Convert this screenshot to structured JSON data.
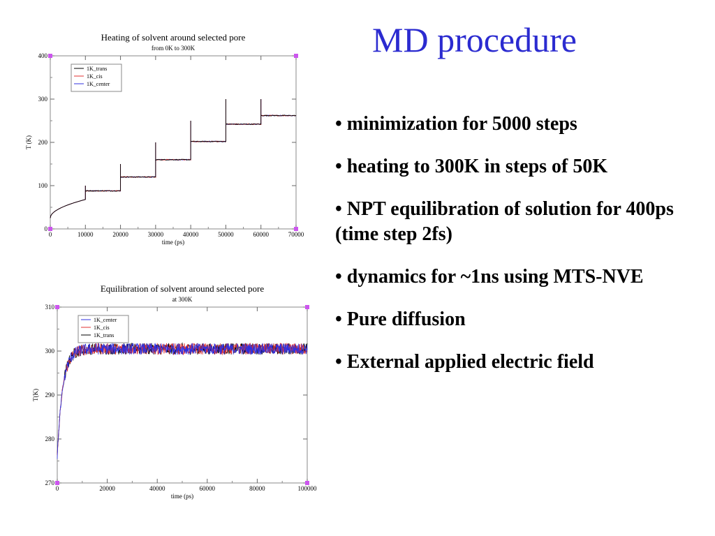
{
  "slide": {
    "title": "MD procedure",
    "bullets": [
      "• minimization for 5000 steps",
      "• heating to 300K in steps of 50K",
      "• NPT equilibration of solution for 400ps (time step 2fs)",
      "• dynamics for ~1ns using MTS-NVE",
      "• Pure diffusion",
      "• External applied electric field"
    ]
  },
  "chart_data": [
    {
      "type": "line",
      "title": "Heating of solvent around selected pore",
      "subtitle": "from 0K to 300K",
      "xlabel": "time (ps)",
      "ylabel": "T (K)",
      "xlim": [
        0,
        70000
      ],
      "ylim": [
        0,
        400
      ],
      "xticks": [
        0,
        10000,
        20000,
        30000,
        40000,
        50000,
        60000,
        70000
      ],
      "yticks": [
        0,
        100,
        200,
        300,
        400
      ],
      "legend_position": "top-left",
      "grid": false,
      "series": [
        {
          "name": "1K_trans",
          "color": "#000000"
        },
        {
          "name": "1K_cis",
          "color": "#e03030"
        },
        {
          "name": "1K_center",
          "color": "#3030e0"
        }
      ],
      "segments": [
        {
          "x_start": 0,
          "x_end": 10000,
          "value": 68,
          "spike": 100
        },
        {
          "x_start": 10000,
          "x_end": 20000,
          "value": 88,
          "spike": 100
        },
        {
          "x_start": 20000,
          "x_end": 30000,
          "value": 120,
          "spike": 150
        },
        {
          "x_start": 30000,
          "x_end": 40000,
          "value": 160,
          "spike": 200
        },
        {
          "x_start": 40000,
          "x_end": 50000,
          "value": 202,
          "spike": 250
        },
        {
          "x_start": 50000,
          "x_end": 60000,
          "value": 242,
          "spike": 300
        },
        {
          "x_start": 60000,
          "x_end": 70000,
          "value": 262,
          "spike": 300
        }
      ]
    },
    {
      "type": "line",
      "title": "Equilibration of solvent around selected pore",
      "subtitle": "at 300K",
      "xlabel": "time (ps)",
      "ylabel": "T(K)",
      "xlim": [
        0,
        100000
      ],
      "ylim": [
        270,
        310
      ],
      "xticks": [
        0,
        20000,
        40000,
        60000,
        80000,
        100000
      ],
      "yticks": [
        270,
        280,
        290,
        300,
        310
      ],
      "legend_position": "top-left",
      "grid": false,
      "series": [
        {
          "name": "1K_center",
          "color": "#3030e0"
        },
        {
          "name": "1K_cis",
          "color": "#e03030"
        },
        {
          "name": "1K_trans",
          "color": "#000000"
        }
      ],
      "start_value": 276,
      "plateau_value": 300.5,
      "noise_amplitude": 1.3
    }
  ]
}
